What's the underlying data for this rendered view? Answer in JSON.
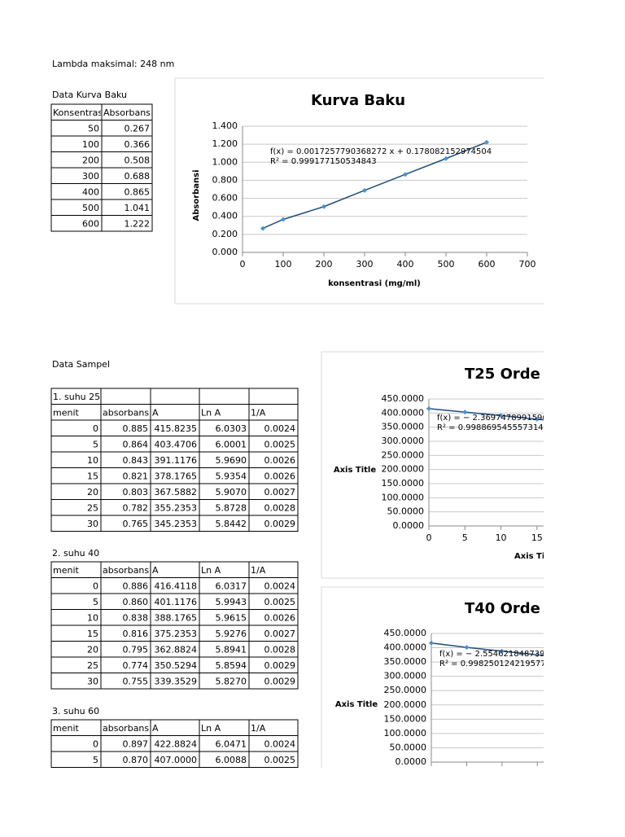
{
  "header": {
    "lambda": "Lambda maksimal: 248 nm"
  },
  "kurva_baku_table": {
    "title": "Data Kurva Baku",
    "columns": [
      "Konsentrasi",
      "Absorbansi"
    ],
    "rows": [
      [
        "50",
        "0.267"
      ],
      [
        "100",
        "0.366"
      ],
      [
        "200",
        "0.508"
      ],
      [
        "300",
        "0.688"
      ],
      [
        "400",
        "0.865"
      ],
      [
        "500",
        "1.041"
      ],
      [
        "600",
        "1.222"
      ]
    ]
  },
  "sample_title": "Data Sampel",
  "sample_tables": [
    {
      "title": "1. suhu 25",
      "columns": [
        "menit",
        "absorbans",
        "A",
        "Ln A",
        "1/A"
      ],
      "rows": [
        [
          "0",
          "0.885",
          "415.8235",
          "6.0303",
          "0.0024"
        ],
        [
          "5",
          "0.864",
          "403.4706",
          "6.0001",
          "0.0025"
        ],
        [
          "10",
          "0.843",
          "391.1176",
          "5.9690",
          "0.0026"
        ],
        [
          "15",
          "0.821",
          "378.1765",
          "5.9354",
          "0.0026"
        ],
        [
          "20",
          "0.803",
          "367.5882",
          "5.9070",
          "0.0027"
        ],
        [
          "25",
          "0.782",
          "355.2353",
          "5.8728",
          "0.0028"
        ],
        [
          "30",
          "0.765",
          "345.2353",
          "5.8442",
          "0.0029"
        ]
      ]
    },
    {
      "title": "2. suhu 40",
      "columns": [
        "menit",
        "absorbans",
        "A",
        "Ln A",
        "1/A"
      ],
      "rows": [
        [
          "0",
          "0.886",
          "416.4118",
          "6.0317",
          "0.0024"
        ],
        [
          "5",
          "0.860",
          "401.1176",
          "5.9943",
          "0.0025"
        ],
        [
          "10",
          "0.838",
          "388.1765",
          "5.9615",
          "0.0026"
        ],
        [
          "15",
          "0.816",
          "375.2353",
          "5.9276",
          "0.0027"
        ],
        [
          "20",
          "0.795",
          "362.8824",
          "5.8941",
          "0.0028"
        ],
        [
          "25",
          "0.774",
          "350.5294",
          "5.8594",
          "0.0029"
        ],
        [
          "30",
          "0.755",
          "339.3529",
          "5.8270",
          "0.0029"
        ]
      ]
    },
    {
      "title": "3. suhu 60",
      "columns": [
        "menit",
        "absorbans",
        "A",
        "Ln A",
        "1/A"
      ],
      "rows": [
        [
          "0",
          "0.897",
          "422.8824",
          "6.0471",
          "0.0024"
        ],
        [
          "5",
          "0.870",
          "407.0000",
          "6.0088",
          "0.0025"
        ]
      ]
    }
  ],
  "charts": [
    {
      "type": "scatter",
      "title": "Kurva Baku",
      "x_label": "konsentrasi (mg/ml)",
      "y_label": "Absorbansi",
      "x": [
        50,
        100,
        200,
        300,
        400,
        500,
        600
      ],
      "values": [
        0.267,
        0.366,
        0.508,
        0.688,
        0.865,
        1.041,
        1.222
      ],
      "xlim": [
        0,
        700
      ],
      "xticks": [
        0,
        100,
        200,
        300,
        400,
        500,
        600,
        700
      ],
      "ylim": [
        0,
        1.4
      ],
      "yticks": [
        {
          "value": 0,
          "label": "0.000"
        },
        {
          "value": 0.2,
          "label": "0.200"
        },
        {
          "value": 0.4,
          "label": "0.400"
        },
        {
          "value": 0.6,
          "label": "0.600"
        },
        {
          "value": 0.8,
          "label": "0.800"
        },
        {
          "value": 1,
          "label": "1.000"
        },
        {
          "value": 1.2,
          "label": "1.200"
        },
        {
          "value": 1.4,
          "label": "1.400"
        }
      ],
      "annotations": [
        "f(x) = 0.0017257790368272 x + 0.178082152974504",
        "R² = 0.999177150534843"
      ],
      "color": "#4a8fd1",
      "line_color": "#1f4e79",
      "grid": true
    },
    {
      "type": "scatter",
      "title": "T25 Orde 0",
      "x_label": "Axis Title",
      "y_label": "Axis Title",
      "x": [
        0,
        5,
        10,
        15,
        20,
        25,
        30
      ],
      "values": [
        415.8235,
        403.4706,
        391.1176,
        378.1765,
        367.5882,
        355.2353,
        345.2353
      ],
      "xlim": [
        0,
        35
      ],
      "xticks": [
        0,
        5,
        10,
        15,
        20,
        25,
        30,
        35
      ],
      "ylim": [
        0,
        450
      ],
      "yticks": [
        {
          "value": 0,
          "label": "0.0000"
        },
        {
          "value": 50,
          "label": "50.0000"
        },
        {
          "value": 100,
          "label": "100.0000"
        },
        {
          "value": 150,
          "label": "150.0000"
        },
        {
          "value": 200,
          "label": "200.0000"
        },
        {
          "value": 250,
          "label": "250.0000"
        },
        {
          "value": 300,
          "label": "300.0000"
        },
        {
          "value": 350,
          "label": "350.0000"
        },
        {
          "value": 400,
          "label": "400.0000"
        },
        {
          "value": 450,
          "label": "450.0000"
        }
      ],
      "annotations": [
        "f(x) = − 2.36974789915966",
        "R² = 0.998869545557314"
      ],
      "color": "#4a8fd1",
      "line_color": "#1f4e79",
      "grid": true
    },
    {
      "type": "scatter",
      "title": "T40 Orde 0",
      "y_label": "Axis Title",
      "x": [
        0,
        5,
        10,
        15,
        20,
        25,
        30
      ],
      "values": [
        416.4118,
        401.1176,
        388.1765,
        375.2353,
        362.8824,
        350.5294,
        339.3529
      ],
      "xlim": [
        0,
        35
      ],
      "xticks": [
        0,
        5,
        10,
        15,
        20,
        25,
        30,
        35
      ],
      "ylim": [
        0,
        450
      ],
      "yticks": [
        {
          "value": 0,
          "label": "0.0000"
        },
        {
          "value": 50,
          "label": "50.0000"
        },
        {
          "value": 100,
          "label": "100.0000"
        },
        {
          "value": 150,
          "label": "150.0000"
        },
        {
          "value": 200,
          "label": "200.0000"
        },
        {
          "value": 250,
          "label": "250.0000"
        },
        {
          "value": 300,
          "label": "300.0000"
        },
        {
          "value": 350,
          "label": "350.0000"
        },
        {
          "value": 400,
          "label": "400.0000"
        },
        {
          "value": 450,
          "label": "450.0000"
        }
      ],
      "annotations": [
        "f(x) = − 2.55462184873949",
        "R² = 0.998250124219577"
      ],
      "color": "#4a8fd1",
      "line_color": "#1f4e79",
      "grid": true
    }
  ]
}
